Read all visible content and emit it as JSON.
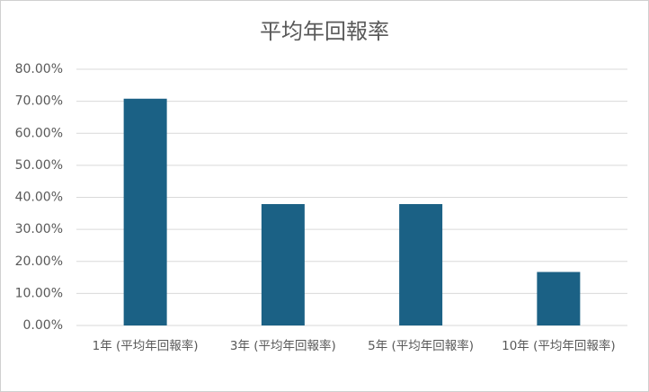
{
  "chart_data": {
    "type": "bar",
    "title": "平均年回報率",
    "categories": [
      "1年 (平均年回報率)",
      "3年 (平均年回報率)",
      "5年 (平均年回報率)",
      "10年 (平均年回報率)"
    ],
    "values": [
      70.8,
      37.9,
      37.9,
      16.7
    ],
    "color": "#1b6185",
    "ylim": [
      0,
      80
    ],
    "yticks": [
      {
        "value": 0,
        "label": "0.00%"
      },
      {
        "value": 10,
        "label": "10.00%"
      },
      {
        "value": 20,
        "label": "20.00%"
      },
      {
        "value": 30,
        "label": "30.00%"
      },
      {
        "value": 40,
        "label": "40.00%"
      },
      {
        "value": 50,
        "label": "50.00%"
      },
      {
        "value": 60,
        "label": "60.00%"
      },
      {
        "value": 70,
        "label": "70.00%"
      },
      {
        "value": 80,
        "label": "80.00%"
      }
    ],
    "grid": true
  }
}
